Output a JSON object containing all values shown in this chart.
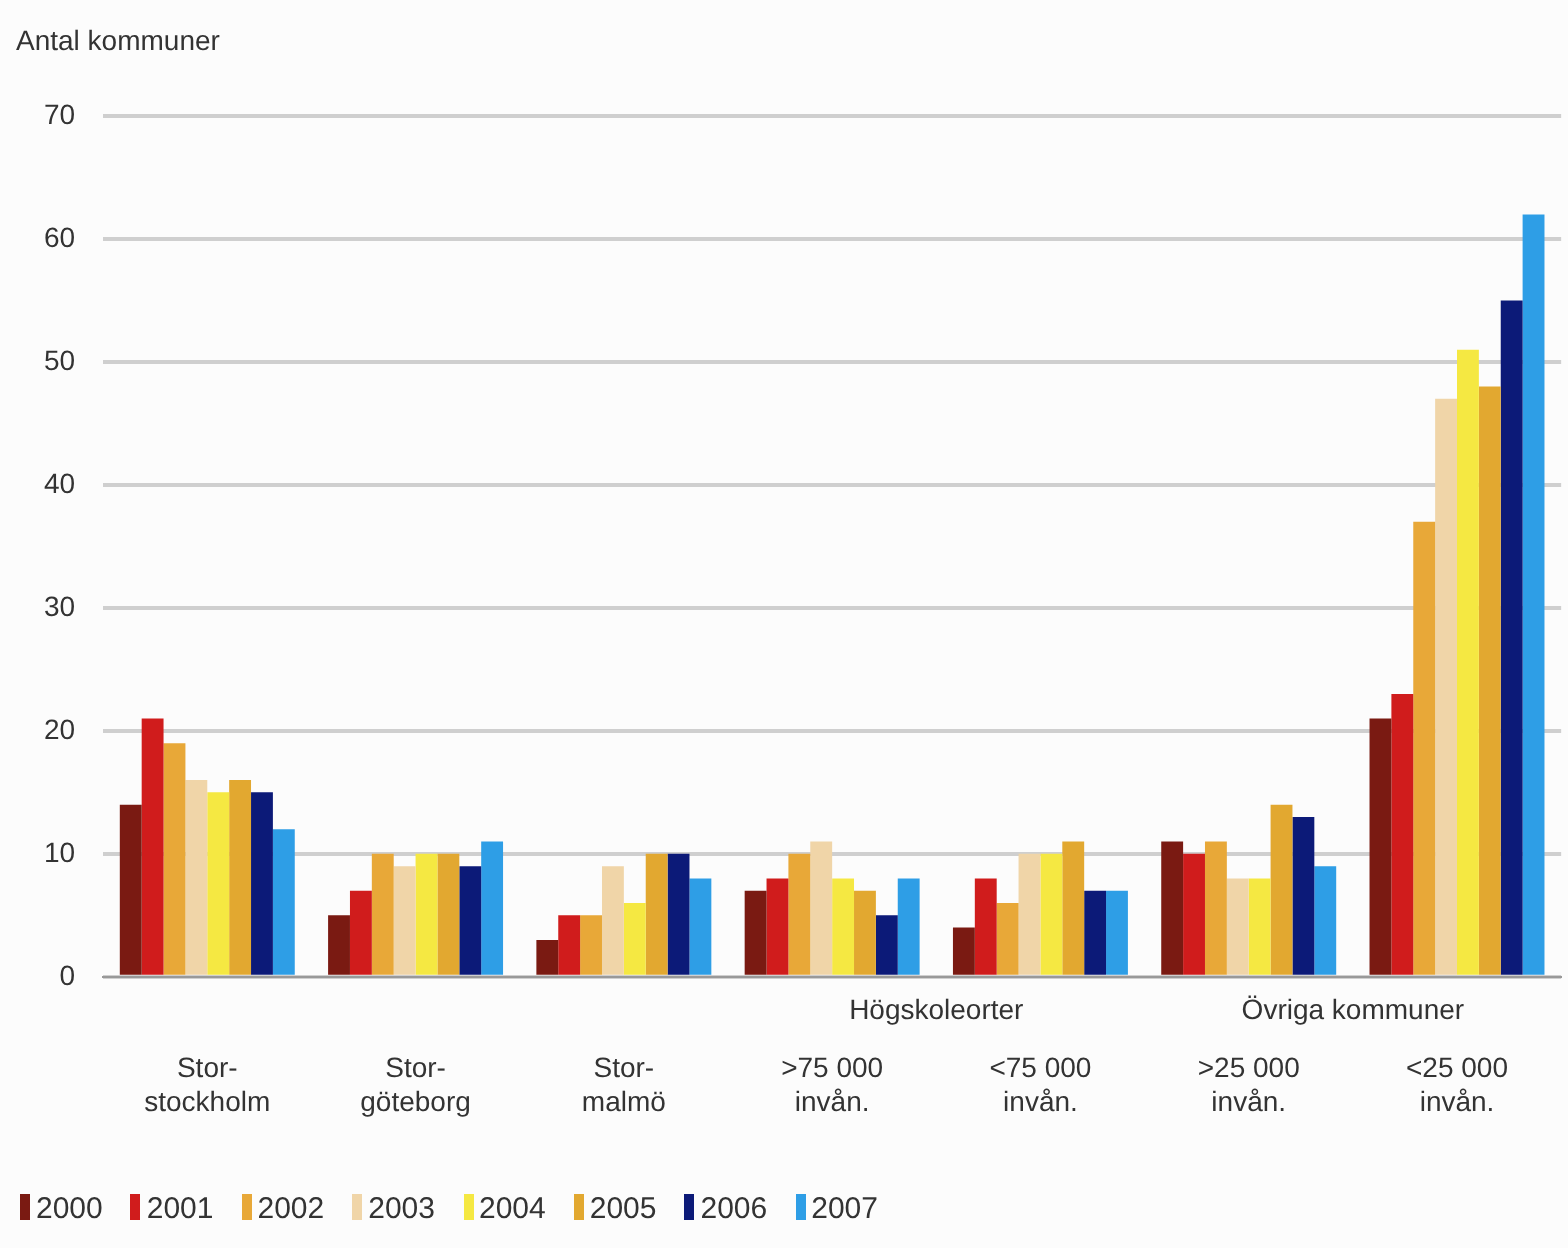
{
  "chart_data": {
    "type": "bar",
    "ylabel": "Antal kommuner",
    "categories": [
      "Stor-\nstockholm",
      "Stor-\ngöteborg",
      "Stor-\nmalmö",
      ">75 000\ninvån.",
      "<75 000\ninvån.",
      ">25 000\ninvån.",
      "<25 000\ninvån."
    ],
    "series": [
      {
        "name": "2000",
        "color": "#7a1a12",
        "values": [
          14,
          5,
          3,
          7,
          4,
          11,
          21
        ]
      },
      {
        "name": "2001",
        "color": "#d01c1c",
        "values": [
          21,
          7,
          5,
          8,
          8,
          10,
          23
        ]
      },
      {
        "name": "2002",
        "color": "#e8a838",
        "values": [
          19,
          10,
          5,
          10,
          6,
          11,
          37
        ]
      },
      {
        "name": "2003",
        "color": "#f0d5a8",
        "values": [
          16,
          9,
          9,
          11,
          10,
          8,
          47
        ]
      },
      {
        "name": "2004",
        "color": "#f5e842",
        "values": [
          15,
          10,
          6,
          8,
          10,
          8,
          51
        ]
      },
      {
        "name": "2005",
        "color": "#e2a830",
        "values": [
          16,
          10,
          10,
          7,
          11,
          14,
          48
        ]
      },
      {
        "name": "2006",
        "color": "#0c1a78",
        "values": [
          15,
          9,
          10,
          5,
          7,
          13,
          55
        ]
      },
      {
        "name": "2007",
        "color": "#2e9ee6",
        "values": [
          12,
          11,
          8,
          8,
          7,
          9,
          62
        ]
      }
    ],
    "annotations": [
      "Högskoleorter",
      "Övriga kommuner"
    ],
    "ylim": [
      0,
      70
    ],
    "yticks": [
      0,
      10,
      20,
      30,
      40,
      50,
      60,
      70
    ],
    "grid": "y",
    "legend": "bottom left"
  }
}
